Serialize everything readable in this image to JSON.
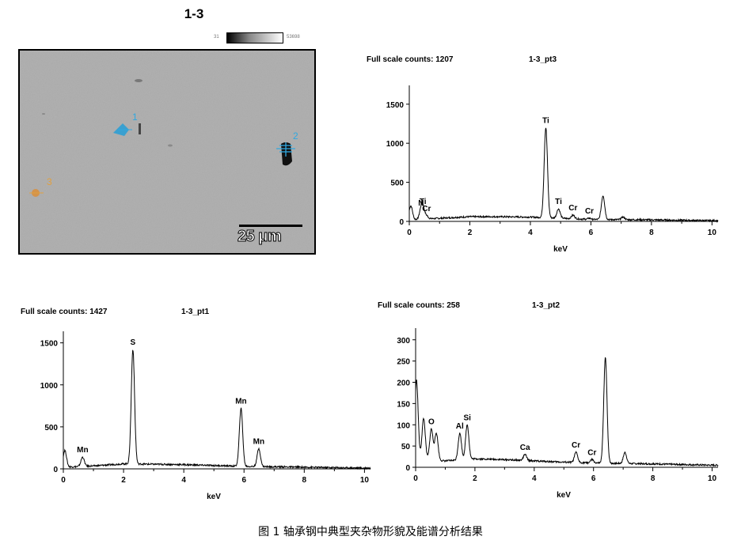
{
  "sem": {
    "title": "1-3",
    "colorbar_min": "31",
    "colorbar_max": "53698",
    "scale_label": "25 μm",
    "markers": [
      {
        "label": "1",
        "color": "#30a8e0"
      },
      {
        "label": "2",
        "color": "#30a8e0"
      },
      {
        "label": "3",
        "color": "#e0a040"
      }
    ]
  },
  "caption": "图 1 轴承钢中典型夹杂物形貌及能谱分析结果",
  "chart_data": [
    {
      "type": "line",
      "id": "pt3",
      "header_counts": "Full scale counts: 1207",
      "header_name": "1-3_pt3",
      "xlabel": "keV",
      "ylabel": "",
      "xlim": [
        0,
        10.2
      ],
      "ylim": [
        0,
        1700
      ],
      "xticks": [
        0,
        2,
        4,
        6,
        8,
        10
      ],
      "yticks": [
        0,
        500,
        1000,
        1500
      ],
      "peaks": [
        {
          "label": "N",
          "x": 0.39,
          "y": 140
        },
        {
          "label": "Ti",
          "x": 0.45,
          "y": 160
        },
        {
          "label": "Cr",
          "x": 0.57,
          "y": 70
        },
        {
          "label": "Ti",
          "x": 4.51,
          "y": 1200
        },
        {
          "label": "Ti",
          "x": 4.93,
          "y": 160
        },
        {
          "label": "Cr",
          "x": 5.41,
          "y": 80
        },
        {
          "label": "Cr",
          "x": 5.95,
          "y": 40
        }
      ],
      "unlabeled_peaks": [
        {
          "x": 0.05,
          "y": 200
        },
        {
          "x": 6.4,
          "y": 330
        },
        {
          "x": 7.06,
          "y": 55
        }
      ],
      "background": [
        [
          0,
          20
        ],
        [
          1,
          40
        ],
        [
          2,
          60
        ],
        [
          3,
          60
        ],
        [
          4,
          55
        ],
        [
          5,
          40
        ],
        [
          6,
          25
        ],
        [
          8,
          20
        ],
        [
          10,
          10
        ]
      ]
    },
    {
      "type": "line",
      "id": "pt1",
      "header_counts": "Full scale counts: 1427",
      "header_name": "1-3_pt1",
      "xlabel": "keV",
      "ylabel": "",
      "xlim": [
        0,
        10.2
      ],
      "ylim": [
        0,
        1600
      ],
      "xticks": [
        0,
        2,
        4,
        6,
        8,
        10
      ],
      "yticks": [
        0,
        500,
        1000,
        1500
      ],
      "peaks": [
        {
          "label": "Mn",
          "x": 0.64,
          "y": 140
        },
        {
          "label": "S",
          "x": 2.31,
          "y": 1420
        },
        {
          "label": "Mn",
          "x": 5.9,
          "y": 720
        },
        {
          "label": "Mn",
          "x": 6.49,
          "y": 240
        }
      ],
      "unlabeled_peaks": [
        {
          "x": 0.05,
          "y": 220
        }
      ],
      "background": [
        [
          0,
          20
        ],
        [
          1,
          35
        ],
        [
          2,
          60
        ],
        [
          3,
          55
        ],
        [
          4,
          50
        ],
        [
          5,
          40
        ],
        [
          6,
          30
        ],
        [
          8,
          20
        ],
        [
          10,
          10
        ]
      ]
    },
    {
      "type": "line",
      "id": "pt2",
      "header_counts": "Full scale counts: 258",
      "header_name": "1-3_pt2",
      "xlabel": "keV",
      "ylabel": "",
      "xlim": [
        0,
        10.2
      ],
      "ylim": [
        0,
        320
      ],
      "xticks": [
        0,
        2,
        4,
        6,
        8,
        10
      ],
      "yticks": [
        0,
        50,
        100,
        150,
        200,
        250,
        300
      ],
      "peaks": [
        {
          "label": "O",
          "x": 0.53,
          "y": 90
        },
        {
          "label": "Al",
          "x": 1.49,
          "y": 80
        },
        {
          "label": "Si",
          "x": 1.74,
          "y": 100
        },
        {
          "label": "Ca",
          "x": 3.69,
          "y": 30
        },
        {
          "label": "Cr",
          "x": 5.41,
          "y": 35
        },
        {
          "label": "Cr",
          "x": 5.95,
          "y": 18
        }
      ],
      "unlabeled_peaks": [
        {
          "x": 0.03,
          "y": 205
        },
        {
          "x": 0.27,
          "y": 115
        },
        {
          "x": 0.7,
          "y": 80
        },
        {
          "x": 6.4,
          "y": 258
        },
        {
          "x": 7.06,
          "y": 35
        }
      ],
      "background": [
        [
          0,
          20
        ],
        [
          1,
          15
        ],
        [
          2,
          20
        ],
        [
          3,
          18
        ],
        [
          4,
          15
        ],
        [
          5,
          12
        ],
        [
          6,
          10
        ],
        [
          8,
          8
        ],
        [
          10,
          5
        ]
      ]
    }
  ]
}
